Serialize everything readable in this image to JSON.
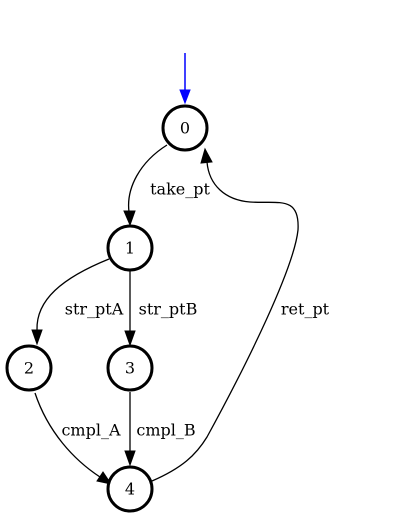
{
  "diagram": {
    "type": "state-machine",
    "initial_state": "0",
    "start_arrow_color": "#0000ff",
    "node_stroke_color": "#000000",
    "edge_color": "#000000",
    "states": [
      {
        "id": "0",
        "label": "0"
      },
      {
        "id": "1",
        "label": "1"
      },
      {
        "id": "2",
        "label": "2"
      },
      {
        "id": "3",
        "label": "3"
      },
      {
        "id": "4",
        "label": "4"
      }
    ],
    "transitions": [
      {
        "from": "0",
        "to": "1",
        "label": "take_pt"
      },
      {
        "from": "1",
        "to": "2",
        "label": "str_ptA"
      },
      {
        "from": "1",
        "to": "3",
        "label": "str_ptB"
      },
      {
        "from": "2",
        "to": "4",
        "label": "cmpl_A"
      },
      {
        "from": "3",
        "to": "4",
        "label": "cmpl_B"
      },
      {
        "from": "4",
        "to": "0",
        "label": "ret_pt"
      }
    ]
  }
}
